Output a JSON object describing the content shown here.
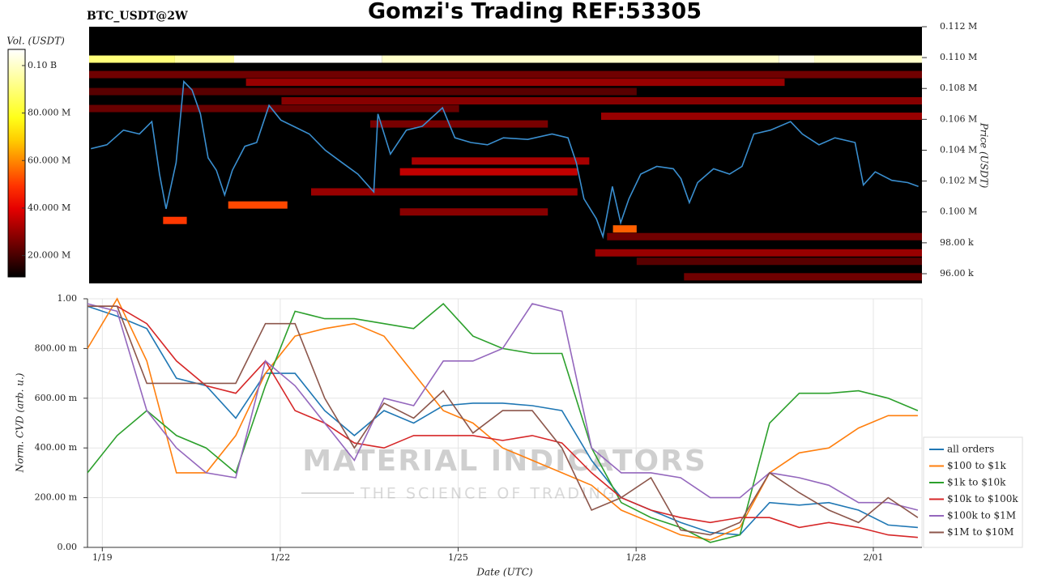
{
  "chart_data": [
    {
      "type": "heatmap",
      "title": "Gomzi's Trading REF:53305",
      "subtitle": "BTC_USDT@2W",
      "ylabel": "Price (USDT)",
      "xlim": [
        -0.25,
        13.82
      ],
      "ylim": [
        95370,
        112000
      ],
      "yticks": [
        {
          "value": 96000,
          "label": "96.00 k"
        },
        {
          "value": 98000,
          "label": "98.00 k"
        },
        {
          "value": 100000,
          "label": "0.100 M"
        },
        {
          "value": 102000,
          "label": "0.102 M"
        },
        {
          "value": 104000,
          "label": "0.104 M"
        },
        {
          "value": 106000,
          "label": "0.106 M"
        },
        {
          "value": 108000,
          "label": "0.108 M"
        },
        {
          "value": 110000,
          "label": "0.110 M"
        },
        {
          "value": 112000,
          "label": "0.112 M"
        }
      ],
      "colorbar": {
        "label": "Vol. (USDT)",
        "lim": [
          11000000,
          106800000
        ],
        "ticks": [
          {
            "value": 20000000,
            "label": "20.000 M"
          },
          {
            "value": 40000000,
            "label": "40.000 M"
          },
          {
            "value": 60000000,
            "label": "60.000 M"
          },
          {
            "value": 80000000,
            "label": "80.000 M"
          },
          {
            "value": 100000000,
            "label": "0.10 B"
          }
        ]
      },
      "bands": [
        {
          "price": 109900,
          "start": -0.25,
          "end": 1.2,
          "value": 90000000
        },
        {
          "price": 109900,
          "start": 1.2,
          "end": 2.2,
          "value": 95000000
        },
        {
          "price": 109900,
          "start": 2.2,
          "end": 4.7,
          "value": 106000000
        },
        {
          "price": 109900,
          "start": 4.7,
          "end": 11.4,
          "value": 100000000
        },
        {
          "price": 109900,
          "start": 11.4,
          "end": 12.0,
          "value": 104000000
        },
        {
          "price": 109900,
          "start": 12.0,
          "end": 13.82,
          "value": 100000000
        },
        {
          "price": 108900,
          "start": -0.25,
          "end": 13.82,
          "value": 25000000
        },
        {
          "price": 108400,
          "start": 2.4,
          "end": 11.5,
          "value": 30000000
        },
        {
          "price": 107800,
          "start": -0.25,
          "end": 9.0,
          "value": 22000000
        },
        {
          "price": 107200,
          "start": 3.0,
          "end": 13.82,
          "value": 28000000
        },
        {
          "price": 106700,
          "start": -0.25,
          "end": 6.0,
          "value": 24000000
        },
        {
          "price": 106200,
          "start": 8.4,
          "end": 13.82,
          "value": 30000000
        },
        {
          "price": 105700,
          "start": 4.5,
          "end": 7.5,
          "value": 26000000
        },
        {
          "price": 103300,
          "start": 5.2,
          "end": 8.2,
          "value": 32000000
        },
        {
          "price": 102600,
          "start": 5.0,
          "end": 8.0,
          "value": 35000000
        },
        {
          "price": 101300,
          "start": 3.5,
          "end": 8.0,
          "value": 30000000
        },
        {
          "price": 100450,
          "start": 2.1,
          "end": 3.1,
          "value": 52000000
        },
        {
          "price": 100000,
          "start": 5.0,
          "end": 7.5,
          "value": 28000000
        },
        {
          "price": 99450,
          "start": 1.0,
          "end": 1.4,
          "value": 50000000
        },
        {
          "price": 98900,
          "start": 8.6,
          "end": 9.0,
          "value": 55000000
        },
        {
          "price": 98400,
          "start": 8.5,
          "end": 13.82,
          "value": 25000000
        },
        {
          "price": 97350,
          "start": 8.3,
          "end": 13.82,
          "value": 30000000
        },
        {
          "price": 96800,
          "start": 9.0,
          "end": 13.82,
          "value": 22000000
        },
        {
          "price": 95800,
          "start": 9.8,
          "end": 13.82,
          "value": 25000000
        }
      ],
      "price": {
        "color": "#3a8fd0",
        "x": [
          -0.22,
          0.05,
          0.33,
          0.6,
          0.81,
          0.94,
          1.05,
          1.22,
          1.35,
          1.49,
          1.63,
          1.76,
          1.9,
          2.04,
          2.17,
          2.38,
          2.58,
          2.79,
          2.99,
          3.2,
          3.47,
          3.74,
          4.02,
          4.29,
          4.56,
          4.63,
          4.84,
          5.11,
          5.38,
          5.72,
          5.93,
          6.2,
          6.48,
          6.75,
          7.16,
          7.57,
          7.84,
          7.98,
          8.11,
          8.32,
          8.43,
          8.59,
          8.73,
          8.87,
          9.07,
          9.34,
          9.62,
          9.75,
          9.89,
          10.03,
          10.3,
          10.57,
          10.78,
          10.98,
          11.26,
          11.6,
          11.8,
          12.08,
          12.35,
          12.69,
          12.83,
          13.03,
          13.31,
          13.58,
          13.76
        ],
        "values": [
          104100,
          104350,
          105300,
          105050,
          105850,
          102450,
          100200,
          103200,
          108450,
          107900,
          106350,
          103500,
          102700,
          101100,
          102700,
          104250,
          104500,
          106900,
          105950,
          105550,
          105050,
          104000,
          103200,
          102450,
          101300,
          106350,
          103750,
          105300,
          105550,
          106750,
          104800,
          104500,
          104350,
          104800,
          104700,
          105050,
          104800,
          103200,
          100850,
          99550,
          98400,
          101650,
          99300,
          100850,
          102450,
          102950,
          102800,
          102150,
          100600,
          101900,
          102800,
          102450,
          102950,
          105050,
          105300,
          105850,
          105050,
          104350,
          104800,
          104500,
          101750,
          102600,
          102050,
          101900,
          101650
        ]
      }
    },
    {
      "type": "line",
      "xlabel": "Date (UTC)",
      "ylabel": "Norm. CVD (arb. u.)",
      "grid": true,
      "legend": "lower right",
      "watermark": [
        "MATERIAL INDICATORS",
        "THE SCIENCE OF TRADING"
      ],
      "xlim": [
        -0.25,
        13.82
      ],
      "ylim": [
        0,
        1
      ],
      "xticks": [
        {
          "value": 0,
          "label": "1/19"
        },
        {
          "value": 3,
          "label": "1/22"
        },
        {
          "value": 6,
          "label": "1/25"
        },
        {
          "value": 9,
          "label": "1/28"
        },
        {
          "value": 13,
          "label": "2/01"
        }
      ],
      "yticks": [
        {
          "value": 0,
          "label": "0.00"
        },
        {
          "value": 0.2,
          "label": "200.00 m"
        },
        {
          "value": 0.4,
          "label": "400.00 m"
        },
        {
          "value": 0.6,
          "label": "600.00 m"
        },
        {
          "value": 0.8,
          "label": "800.00 m"
        },
        {
          "value": 1,
          "label": "1.00"
        }
      ],
      "x": [
        -0.25,
        0.25,
        0.75,
        1.25,
        1.75,
        2.25,
        2.75,
        3.25,
        3.75,
        4.25,
        4.75,
        5.25,
        5.75,
        6.25,
        6.75,
        7.25,
        7.75,
        8.25,
        8.75,
        9.25,
        9.75,
        10.25,
        10.75,
        11.25,
        11.75,
        12.25,
        12.75,
        13.25,
        13.75
      ],
      "series": [
        {
          "name": "all orders",
          "color": "#1f77b4",
          "values": [
            0.97,
            0.93,
            0.88,
            0.68,
            0.65,
            0.52,
            0.7,
            0.7,
            0.55,
            0.45,
            0.55,
            0.5,
            0.57,
            0.58,
            0.58,
            0.57,
            0.55,
            0.35,
            0.2,
            0.15,
            0.1,
            0.06,
            0.05,
            0.18,
            0.17,
            0.18,
            0.15,
            0.09,
            0.08
          ]
        },
        {
          "name": "$100 to $1k",
          "color": "#ff7f0e",
          "values": [
            0.8,
            1.0,
            0.75,
            0.3,
            0.3,
            0.45,
            0.7,
            0.85,
            0.88,
            0.9,
            0.85,
            0.7,
            0.55,
            0.5,
            0.4,
            0.35,
            0.3,
            0.25,
            0.15,
            0.1,
            0.05,
            0.03,
            0.08,
            0.3,
            0.38,
            0.4,
            0.48,
            0.53,
            0.53
          ]
        },
        {
          "name": "$1k to $10k",
          "color": "#2ca02c",
          "values": [
            0.3,
            0.45,
            0.55,
            0.45,
            0.4,
            0.3,
            0.65,
            0.95,
            0.92,
            0.92,
            0.9,
            0.88,
            0.98,
            0.85,
            0.8,
            0.78,
            0.78,
            0.4,
            0.18,
            0.12,
            0.08,
            0.02,
            0.05,
            0.5,
            0.62,
            0.62,
            0.63,
            0.6,
            0.55
          ]
        },
        {
          "name": "$10k to $100k",
          "color": "#d62728",
          "values": [
            0.97,
            0.97,
            0.9,
            0.75,
            0.65,
            0.62,
            0.75,
            0.55,
            0.5,
            0.42,
            0.4,
            0.45,
            0.45,
            0.45,
            0.43,
            0.45,
            0.42,
            0.3,
            0.2,
            0.15,
            0.12,
            0.1,
            0.12,
            0.12,
            0.08,
            0.1,
            0.08,
            0.05,
            0.04
          ]
        },
        {
          "name": "$100k to $1M",
          "color": "#9467bd",
          "values": [
            0.98,
            0.95,
            0.55,
            0.4,
            0.3,
            0.28,
            0.75,
            0.65,
            0.5,
            0.35,
            0.6,
            0.57,
            0.75,
            0.75,
            0.8,
            0.98,
            0.95,
            0.4,
            0.3,
            0.3,
            0.28,
            0.2,
            0.2,
            0.3,
            0.28,
            0.25,
            0.18,
            0.18,
            0.15
          ]
        },
        {
          "name": "$1M to $10M",
          "color": "#8c564b",
          "values": [
            0.97,
            0.97,
            0.66,
            0.66,
            0.66,
            0.66,
            0.9,
            0.9,
            0.6,
            0.4,
            0.58,
            0.52,
            0.63,
            0.46,
            0.55,
            0.55,
            0.4,
            0.15,
            0.2,
            0.28,
            0.07,
            0.05,
            0.1,
            0.3,
            0.22,
            0.15,
            0.1,
            0.2,
            0.12
          ]
        }
      ]
    }
  ]
}
